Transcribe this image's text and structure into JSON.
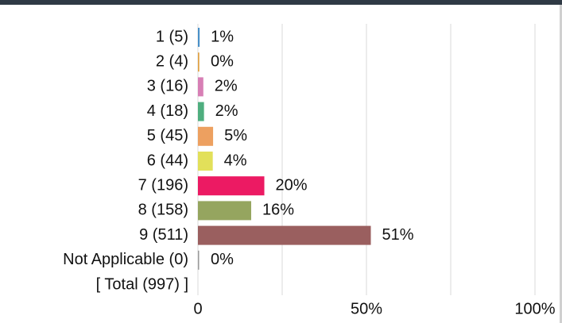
{
  "chart_data": {
    "type": "hbar",
    "categories": [
      "1 (5)",
      "2 (4)",
      "3 (16)",
      "4 (18)",
      "5 (45)",
      "6 (44)",
      "7 (196)",
      "8 (158)",
      "9 (511)",
      "Not Applicable (0)",
      "[ Total (997) ]"
    ],
    "values": [
      0.5,
      0.4,
      1.6,
      1.8,
      4.5,
      4.4,
      19.7,
      15.8,
      51.3,
      0,
      null
    ],
    "value_labels": [
      "1%",
      "0%",
      "2%",
      "2%",
      "5%",
      "4%",
      "20%",
      "16%",
      "51%",
      "0%",
      null
    ],
    "colors": [
      "#4a90c8",
      "#e0a040",
      "#d77fb5",
      "#4fae7f",
      "#eda060",
      "#e2e05a",
      "#ec1a63",
      "#95a55f",
      "#9a5f5f",
      "#999999",
      null
    ],
    "xlim": [
      0,
      100
    ],
    "xticks": [
      0,
      {
        "value": 50,
        "label": "50%"
      },
      {
        "value": 100,
        "label": "100%"
      }
    ],
    "minor_xticks": [
      25,
      75
    ],
    "grid": true
  }
}
